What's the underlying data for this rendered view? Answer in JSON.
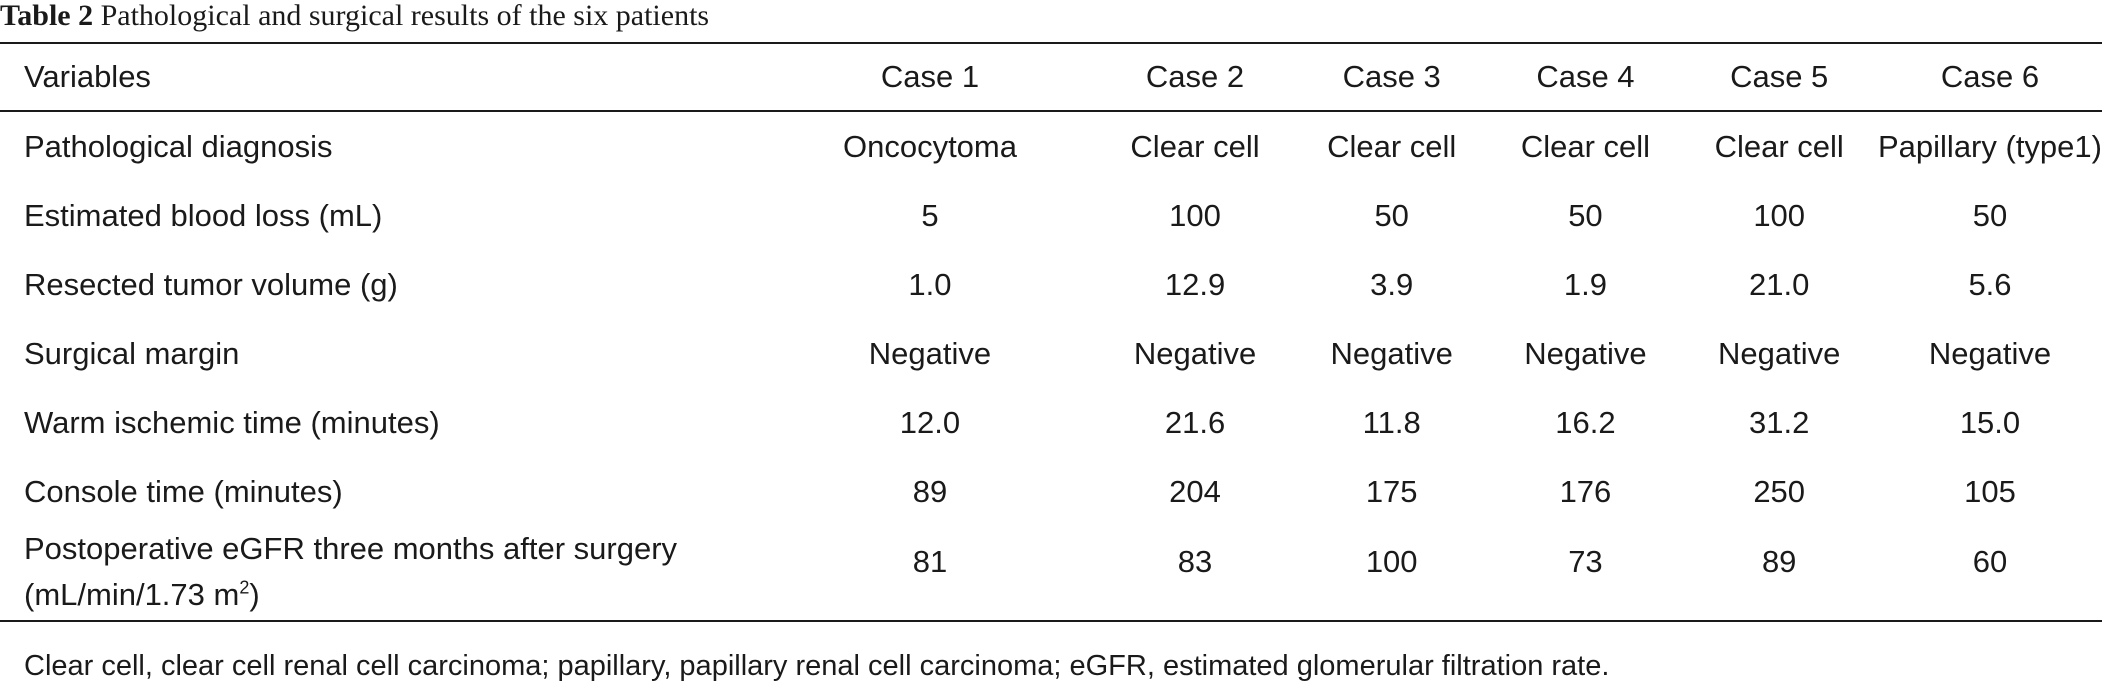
{
  "caption": {
    "label": "Table 2",
    "title": "Pathological and surgical results of the six patients"
  },
  "table": {
    "headers": [
      "Variables",
      "Case 1",
      "Case 2",
      "Case 3",
      "Case 4",
      "Case 5",
      "Case 6"
    ],
    "rows": [
      {
        "label": "Pathological diagnosis",
        "values": [
          "Oncocytoma",
          "Clear cell",
          "Clear cell",
          "Clear cell",
          "Clear cell",
          "Papillary (type1)"
        ]
      },
      {
        "label": "Estimated blood loss (mL)",
        "values": [
          "5",
          "100",
          "50",
          "50",
          "100",
          "50"
        ]
      },
      {
        "label": "Resected tumor volume (g)",
        "values": [
          "1.0",
          "12.9",
          "3.9",
          "1.9",
          "21.0",
          "5.6"
        ]
      },
      {
        "label": "Surgical margin",
        "values": [
          "Negative",
          "Negative",
          "Negative",
          "Negative",
          "Negative",
          "Negative"
        ]
      },
      {
        "label": "Warm ischemic time (minutes)",
        "values": [
          "12.0",
          "21.6",
          "11.8",
          "16.2",
          "31.2",
          "15.0"
        ]
      },
      {
        "label": "Console time (minutes)",
        "values": [
          "89",
          "204",
          "175",
          "176",
          "250",
          "105"
        ]
      }
    ],
    "last_row": {
      "label_line1": "Postoperative eGFR three months after surgery",
      "label_line2": "(mL/min/1.73 m",
      "label_sup": "2",
      "label_close": ")",
      "values": [
        "81",
        "83",
        "100",
        "73",
        "89",
        "60"
      ]
    }
  },
  "footnote": "Clear cell, clear cell renal cell carcinoma; papillary, papillary renal cell carcinoma; eGFR, estimated glomerular filtration rate."
}
